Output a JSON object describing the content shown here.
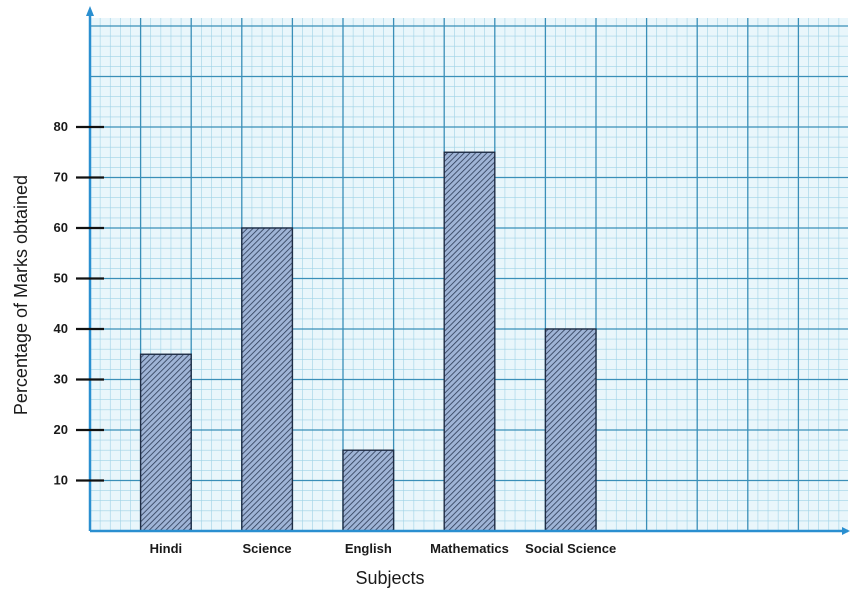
{
  "chart_data": {
    "type": "bar",
    "categories": [
      "Hindi",
      "Science",
      "English",
      "Mathematics",
      "Social Science"
    ],
    "values": [
      35,
      60,
      16,
      75,
      40
    ],
    "xlabel": "Subjects",
    "ylabel": "Percentage of Marks obtained",
    "yticks": [
      10,
      20,
      30,
      40,
      50,
      60,
      70,
      80
    ],
    "ylim": [
      0,
      100
    ],
    "grid": true,
    "bar_pattern": "diagonal-hatch",
    "colors": {
      "grid_major": "#3a8fb8",
      "grid_minor": "#9fd2e6",
      "grid_background": "#e9f6fb",
      "bar_fill": "#9fb4d6",
      "bar_hatch": "#2b3a55",
      "axis": "#2a8fd0"
    }
  }
}
